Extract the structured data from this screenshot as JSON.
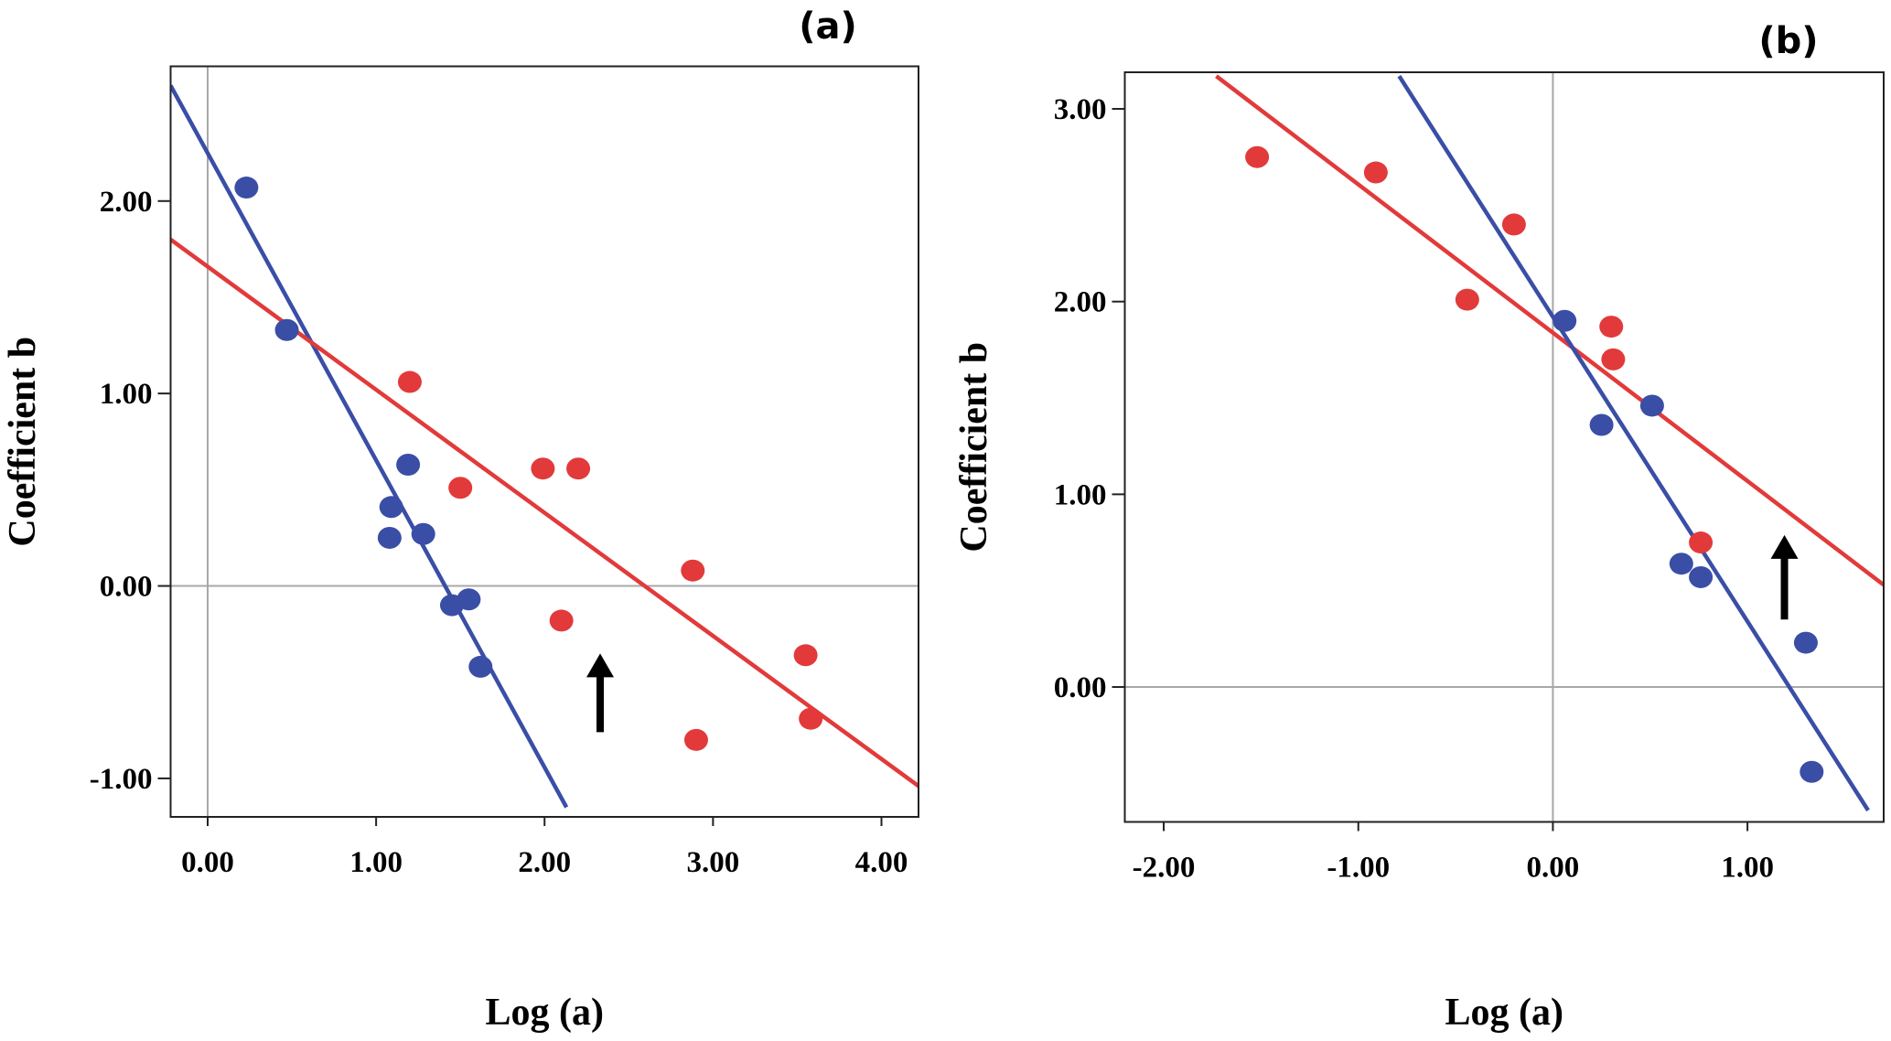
{
  "colors": {
    "blue": "#3a4ea6",
    "red": "#e23a3a",
    "ref": "#a8a8a8"
  },
  "chart_data": [
    {
      "type": "scatter",
      "panel_label": "(a)",
      "xlabel": "Log (a)",
      "ylabel": "Coefficient b",
      "xlim": [
        -0.22,
        4.22
      ],
      "ylim": [
        -1.2,
        2.7
      ],
      "xticks": [
        0,
        1,
        2,
        3,
        4
      ],
      "xtick_labels": [
        "0.00",
        "1.00",
        "2.00",
        "3.00",
        "4.00"
      ],
      "yticks": [
        -1,
        0,
        1,
        2
      ],
      "ytick_labels": [
        "-1.00",
        "0.00",
        "1.00",
        "2.00"
      ],
      "reference_lines": {
        "x": 0,
        "y": 0
      },
      "series": [
        {
          "name": "blue",
          "color": "#3a4ea6",
          "points": [
            [
              0.23,
              2.07
            ],
            [
              0.47,
              1.33
            ],
            [
              1.19,
              0.63
            ],
            [
              1.09,
              0.41
            ],
            [
              1.08,
              0.25
            ],
            [
              1.28,
              0.27
            ],
            [
              1.45,
              -0.1
            ],
            [
              1.55,
              -0.07
            ],
            [
              1.62,
              -0.42
            ]
          ],
          "fit_line": [
            [
              -0.22,
              2.6
            ],
            [
              2.13,
              -1.15
            ]
          ]
        },
        {
          "name": "red",
          "color": "#e23a3a",
          "points": [
            [
              1.2,
              1.06
            ],
            [
              1.5,
              0.51
            ],
            [
              1.99,
              0.61
            ],
            [
              2.2,
              0.61
            ],
            [
              2.88,
              0.08
            ],
            [
              2.1,
              -0.18
            ],
            [
              3.55,
              -0.36
            ],
            [
              3.58,
              -0.69
            ],
            [
              2.9,
              -0.8
            ]
          ],
          "fit_line": [
            [
              -0.22,
              1.8
            ],
            [
              4.22,
              -1.04
            ]
          ]
        }
      ],
      "annotations": [
        {
          "type": "arrow",
          "x": 2.33,
          "from_y": -0.76,
          "to_y": -0.37
        }
      ]
    },
    {
      "type": "scatter",
      "panel_label": "(b)",
      "xlabel": "Log (a)",
      "ylabel": "Coefficient b",
      "xlim": [
        -2.2,
        1.7
      ],
      "ylim": [
        -0.7,
        3.19
      ],
      "xticks": [
        -2,
        -1,
        0,
        1
      ],
      "xtick_labels": [
        "-2.00",
        "-1.00",
        "0.00",
        "1.00"
      ],
      "yticks": [
        0,
        1,
        2,
        3
      ],
      "ytick_labels": [
        "0.00",
        "1.00",
        "2.00",
        "3.00"
      ],
      "reference_lines": {
        "x": 0,
        "y": 0
      },
      "series": [
        {
          "name": "red",
          "color": "#e23a3a",
          "points": [
            [
              -1.52,
              2.75
            ],
            [
              -0.91,
              2.67
            ],
            [
              -0.2,
              2.4
            ],
            [
              -0.44,
              2.01
            ],
            [
              0.3,
              1.87
            ],
            [
              0.31,
              1.7
            ],
            [
              0.76,
              0.75
            ]
          ],
          "fit_line": [
            [
              -1.73,
              3.17
            ],
            [
              1.7,
              0.53
            ]
          ]
        },
        {
          "name": "blue",
          "color": "#3a4ea6",
          "points": [
            [
              0.06,
              1.9
            ],
            [
              0.25,
              1.36
            ],
            [
              0.51,
              1.46
            ],
            [
              0.66,
              0.64
            ],
            [
              0.76,
              0.57
            ],
            [
              1.3,
              0.23
            ],
            [
              1.33,
              -0.44
            ]
          ],
          "fit_line": [
            [
              -0.79,
              3.17
            ],
            [
              1.62,
              -0.64
            ]
          ]
        }
      ],
      "annotations": [
        {
          "type": "arrow",
          "x": 1.19,
          "from_y": 0.35,
          "to_y": 0.77
        }
      ]
    }
  ]
}
